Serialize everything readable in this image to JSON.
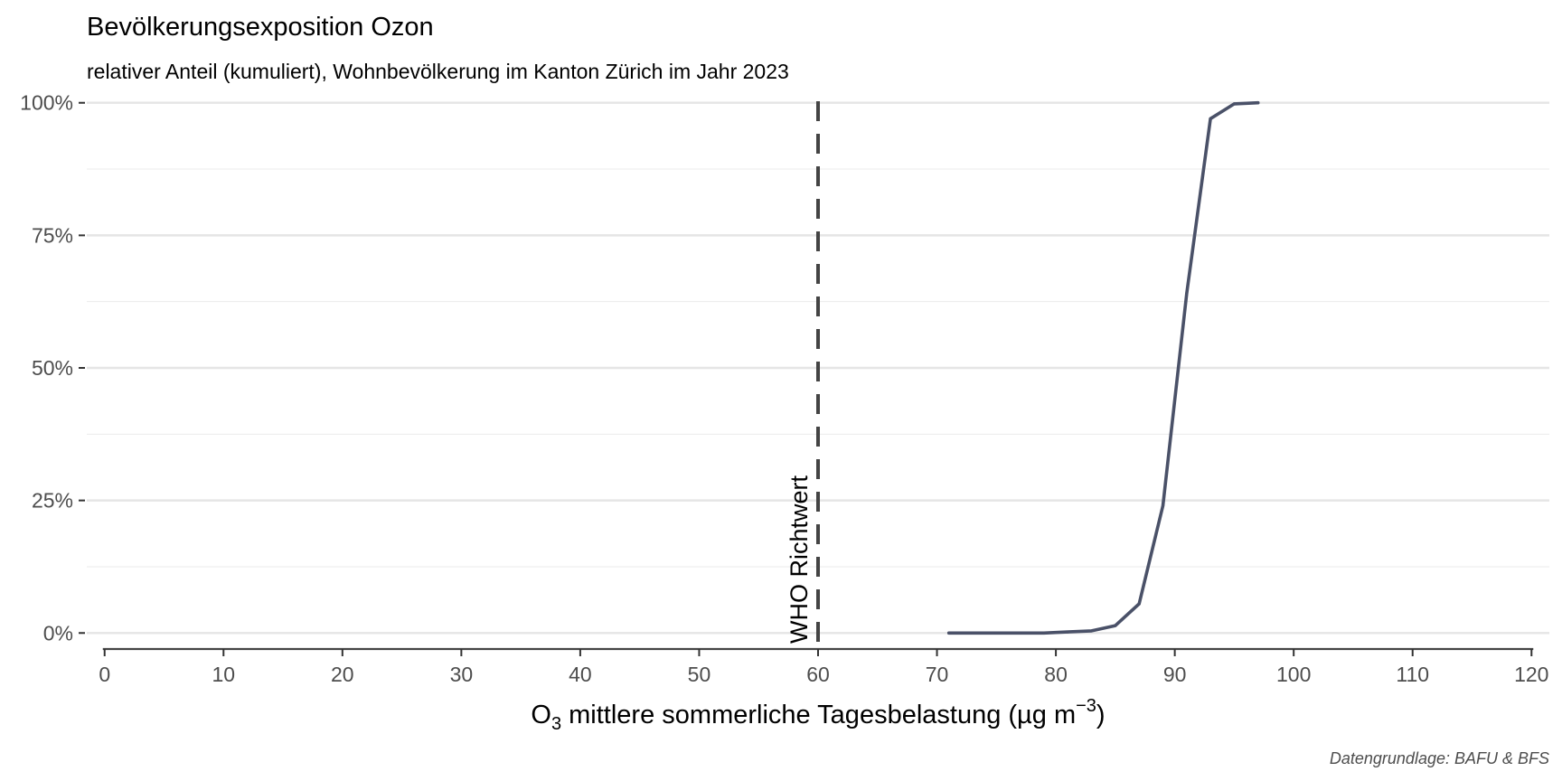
{
  "chart_data": {
    "type": "line",
    "title": "Bevölkerungsexposition Ozon",
    "subtitle": "relativer Anteil (kumuliert), Wohnbevölkerung im Kanton Zürich im Jahr 2023",
    "xlabel": {
      "prefix": "O",
      "subscript": "3",
      "main": " mittlere sommerliche Tagesbelastung (µg m",
      "superscript": "−3",
      "suffix": ")"
    },
    "ylabel": "",
    "caption": "Datengrundlage: BAFU & BFS",
    "xlim": [
      0,
      120
    ],
    "ylim": [
      0,
      1
    ],
    "x_ticks": [
      0,
      10,
      20,
      30,
      40,
      50,
      60,
      70,
      80,
      90,
      100,
      110,
      120
    ],
    "x_tick_labels": [
      "0",
      "10",
      "20",
      "30",
      "40",
      "50",
      "60",
      "70",
      "80",
      "90",
      "100",
      "110",
      "120"
    ],
    "y_ticks": [
      0,
      0.25,
      0.5,
      0.75,
      1
    ],
    "y_tick_labels": [
      "0%",
      "25%",
      "50%",
      "75%",
      "100%"
    ],
    "grid": true,
    "series": [
      {
        "x": [
          71,
          73,
          75,
          77,
          79,
          81,
          83,
          85,
          87,
          89,
          91,
          93,
          95,
          97
        ],
        "y": [
          0,
          0,
          0,
          0,
          0,
          0.002,
          0.004,
          0.014,
          0.055,
          0.24,
          0.64,
          0.97,
          0.998,
          1.0
        ],
        "color": "#4a5168"
      }
    ],
    "reference_line": {
      "x": 60,
      "label": "WHO Richtwert",
      "color": "#444444",
      "style": "dashed"
    }
  }
}
